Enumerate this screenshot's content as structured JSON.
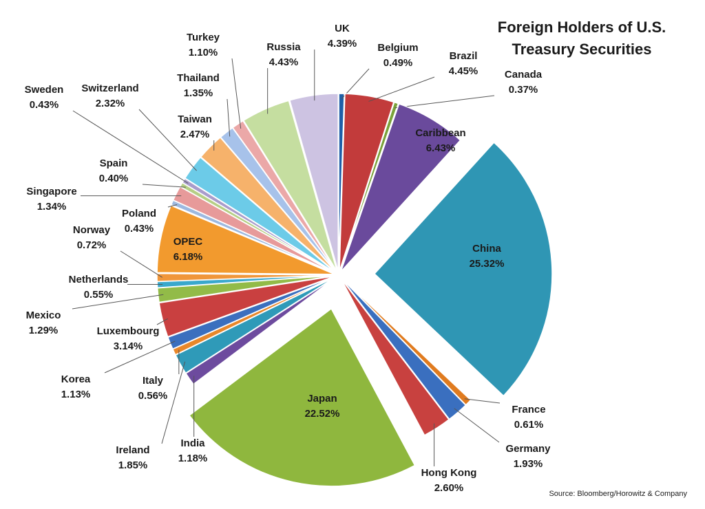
{
  "chart_data": {
    "type": "pie",
    "title": "Foreign Holders of U.S. Treasury Securities",
    "source": "Source: Bloomberg/Horowitz & Company",
    "categories": [
      "Belgium",
      "Brazil",
      "Canada",
      "Caribbean",
      "China",
      "France",
      "Germany",
      "Hong Kong",
      "Japan",
      "India",
      "Ireland",
      "Italy",
      "Korea",
      "Luxembourg",
      "Mexico",
      "Netherlands",
      "Norway",
      "OPEC",
      "Poland",
      "Singapore",
      "Spain",
      "Sweden",
      "Switzerland",
      "Taiwan",
      "Thailand",
      "Turkey",
      "Russia",
      "UK"
    ],
    "values": [
      0.49,
      4.45,
      0.37,
      6.43,
      25.32,
      0.61,
      1.93,
      2.6,
      22.52,
      1.18,
      1.85,
      0.56,
      1.13,
      3.14,
      1.29,
      0.55,
      0.72,
      6.18,
      0.43,
      1.34,
      0.4,
      0.43,
      2.32,
      2.47,
      1.35,
      1.1,
      4.43,
      4.39
    ],
    "value_labels": [
      "0.49%",
      "4.45%",
      "0.37%",
      "6.43%",
      "25.32%",
      "0.61%",
      "1.93%",
      "2.60%",
      "22.52%",
      "1.18%",
      "1.85%",
      "0.56%",
      "1.13%",
      "3.14%",
      "1.29%",
      "0.55%",
      "0.72%",
      "6.18%",
      "0.43%",
      "1.34%",
      "0.40%",
      "0.43%",
      "2.32%",
      "2.47%",
      "1.35%",
      "1.10%",
      "4.43%",
      "4.39%"
    ],
    "colors": [
      "#1f5fa8",
      "#c23b3b",
      "#7aa23a",
      "#6a4a9c",
      "#2f96b4",
      "#e07b1f",
      "#3a6fbf",
      "#c8413f",
      "#8fb73e",
      "#6d4b9e",
      "#2f9ab8",
      "#e8872a",
      "#3b6fbe",
      "#c94040",
      "#92bb48",
      "#39a8cc",
      "#f0963a",
      "#f29a2e",
      "#9db9e0",
      "#e79a9a",
      "#b6cf85",
      "#a99ccb",
      "#6ccbe8",
      "#f6b26b",
      "#a7c2ea",
      "#eba8a8",
      "#c5dea0",
      "#cdc3e2"
    ]
  }
}
